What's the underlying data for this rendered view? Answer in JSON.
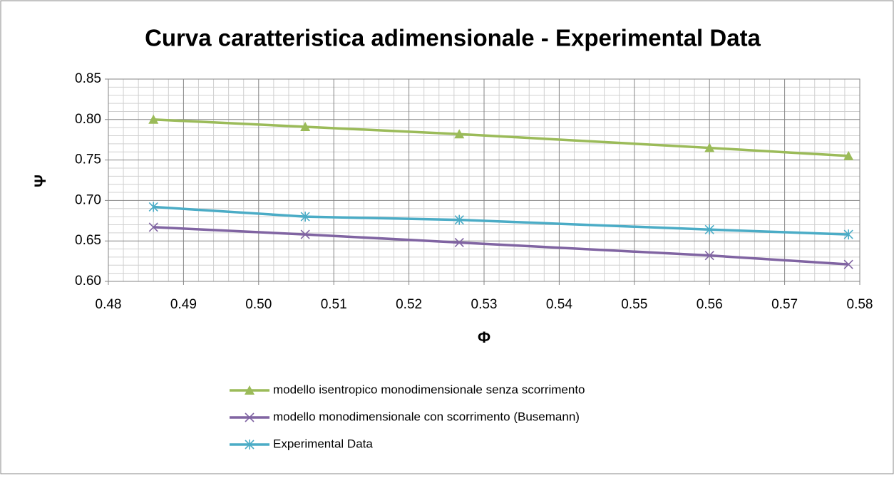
{
  "chart_data": {
    "type": "line",
    "title": "Curva caratteristica adimensionale - Experimental Data",
    "x_label": "Φ",
    "y_label": "Ψ",
    "x": [
      0.486,
      0.5062,
      0.5267,
      0.56,
      0.5785
    ],
    "series": [
      {
        "name": "modello isentropico monodimensionale senza scorrimento",
        "color": "#9bbb59",
        "marker": "triangle",
        "values": [
          0.8,
          0.791,
          0.782,
          0.765,
          0.755
        ]
      },
      {
        "name": "modello monodimensionale con scorrimento (Busemann)",
        "color": "#8064a2",
        "marker": "x",
        "values": [
          0.667,
          0.658,
          0.648,
          0.632,
          0.621
        ]
      },
      {
        "name": "Experimental Data",
        "color": "#4bacc6",
        "marker": "asterisk",
        "values": [
          0.692,
          0.68,
          0.676,
          0.664,
          0.658
        ]
      }
    ],
    "xlim": [
      0.48,
      0.58
    ],
    "xticks": [
      0.48,
      0.49,
      {
        "value": 0.5,
        "label": "0.50"
      },
      0.51,
      0.52,
      0.53,
      0.54,
      0.55,
      0.56,
      0.57,
      0.58
    ],
    "ylim": [
      0.6,
      0.85
    ],
    "yticks": [
      {
        "value": 0.6,
        "label": "0.60"
      },
      0.65,
      {
        "value": 0.7,
        "label": "0.70"
      },
      0.75,
      {
        "value": 0.8,
        "label": "0.80"
      },
      0.85
    ],
    "grid": true,
    "minor_grid": true,
    "legend": "bottom"
  }
}
